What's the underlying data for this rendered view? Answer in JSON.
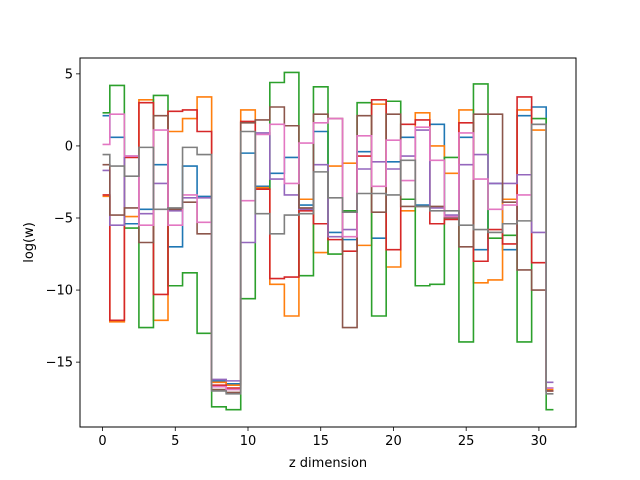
{
  "chart_data": {
    "type": "line",
    "step": "mid",
    "xlabel": "z dimension",
    "ylabel": "log(w)",
    "xlim": [
      -1.55,
      32.55
    ],
    "ylim": [
      -19.5,
      6.1
    ],
    "xticks": [
      0,
      5,
      10,
      15,
      20,
      25,
      30
    ],
    "yticks": [
      -15,
      -10,
      -5,
      0,
      5
    ],
    "grid": false,
    "x": [
      0,
      1,
      2,
      3,
      4,
      5,
      6,
      7,
      8,
      9,
      10,
      11,
      12,
      13,
      14,
      15,
      16,
      17,
      18,
      19,
      20,
      21,
      22,
      23,
      24,
      25,
      26,
      27,
      28,
      29,
      30,
      31
    ],
    "series": [
      {
        "color": "#1f77b4",
        "values": [
          2.1,
          0.6,
          -5.4,
          -4.4,
          -1.3,
          -7.0,
          -1.4,
          -3.5,
          -16.3,
          -16.5,
          -0.5,
          -2.8,
          -1.9,
          -0.8,
          -4.1,
          1.0,
          -6.0,
          -6.5,
          -0.4,
          -6.4,
          -1.1,
          0.6,
          -4.1,
          1.5,
          -4.9,
          0.6,
          -7.2,
          -2.6,
          -7.2,
          2.1,
          2.7,
          -16.8
        ]
      },
      {
        "color": "#ff7f0e",
        "values": [
          -3.5,
          -12.2,
          -4.9,
          3.2,
          -12.1,
          1.0,
          1.9,
          3.4,
          -16.4,
          -16.6,
          2.5,
          -2.9,
          -9.6,
          -11.8,
          -3.7,
          -7.4,
          -1.4,
          -1.2,
          -6.9,
          2.9,
          -8.4,
          -4.5,
          2.3,
          0.0,
          -1.9,
          2.5,
          -9.5,
          -9.3,
          -3.7,
          2.5,
          1.1,
          -16.9
        ]
      },
      {
        "color": "#2ca02c",
        "values": [
          2.3,
          4.2,
          -5.7,
          -12.6,
          3.5,
          -9.7,
          -8.8,
          -13.0,
          -18.1,
          -18.3,
          -10.6,
          -3.0,
          4.4,
          5.1,
          -9.0,
          4.1,
          -7.5,
          -4.5,
          3.0,
          -11.8,
          3.1,
          -3.7,
          -9.7,
          -9.6,
          -0.8,
          -13.6,
          4.3,
          -6.4,
          -6.2,
          -13.6,
          1.9,
          -18.3
        ]
      },
      {
        "color": "#d62728",
        "values": [
          -3.4,
          -12.1,
          -0.8,
          3.0,
          -10.3,
          2.4,
          2.5,
          1.0,
          -16.6,
          -16.8,
          1.7,
          -3.0,
          -9.2,
          -9.1,
          -4.5,
          -5.4,
          -6.5,
          -7.3,
          -0.7,
          3.2,
          -7.2,
          1.5,
          1.8,
          -5.4,
          -5.1,
          1.6,
          -8.0,
          -5.8,
          -6.8,
          3.4,
          -8.1,
          -17.0
        ]
      },
      {
        "color": "#9467bd",
        "values": [
          -1.7,
          -5.5,
          -0.7,
          -4.7,
          -2.6,
          -4.5,
          -3.6,
          -3.6,
          -16.2,
          -16.3,
          -6.7,
          0.9,
          -2.3,
          -3.4,
          -4.4,
          -1.3,
          -6.3,
          -5.8,
          -1.6,
          -1.1,
          -1.6,
          -0.7,
          1.1,
          -4.3,
          -4.8,
          -1.3,
          -0.6,
          -2.6,
          -2.6,
          -2.0,
          -6.0,
          -16.4
        ]
      },
      {
        "color": "#8c564b",
        "values": [
          -1.3,
          -4.8,
          -4.3,
          -6.7,
          2.1,
          -4.4,
          -3.9,
          -6.1,
          -16.9,
          -17.1,
          1.6,
          1.8,
          2.7,
          1.4,
          -4.3,
          2.2,
          1.9,
          -12.6,
          2.1,
          -4.6,
          2.2,
          -4.2,
          -4.2,
          -4.2,
          -5.0,
          -7.0,
          2.2,
          2.2,
          -3.9,
          -8.6,
          -10.0,
          -17.0
        ]
      },
      {
        "color": "#e377c2",
        "values": [
          0.1,
          2.2,
          -0.7,
          -5.5,
          1.1,
          -5.5,
          -3.4,
          -5.3,
          -16.7,
          -16.9,
          -3.8,
          0.8,
          1.5,
          -2.6,
          0.2,
          1.6,
          1.9,
          -6.3,
          0.7,
          -2.8,
          0.4,
          -2.4,
          1.3,
          -1.0,
          -4.9,
          0.9,
          -2.3,
          -4.4,
          -4.1,
          -3.4,
          1.5,
          -16.8
        ]
      },
      {
        "color": "#7f7f7f",
        "values": [
          -0.6,
          -1.4,
          -2.1,
          -0.1,
          -4.4,
          -4.3,
          -0.1,
          -0.6,
          -17.0,
          -17.2,
          1.0,
          -4.7,
          -6.1,
          -4.8,
          -4.7,
          -1.8,
          -3.6,
          -4.6,
          -3.3,
          -3.3,
          -3.4,
          -1.0,
          -4.2,
          -4.5,
          -4.5,
          -5.5,
          -5.8,
          -6.0,
          -5.4,
          -5.2,
          1.5,
          -17.2
        ]
      }
    ]
  }
}
